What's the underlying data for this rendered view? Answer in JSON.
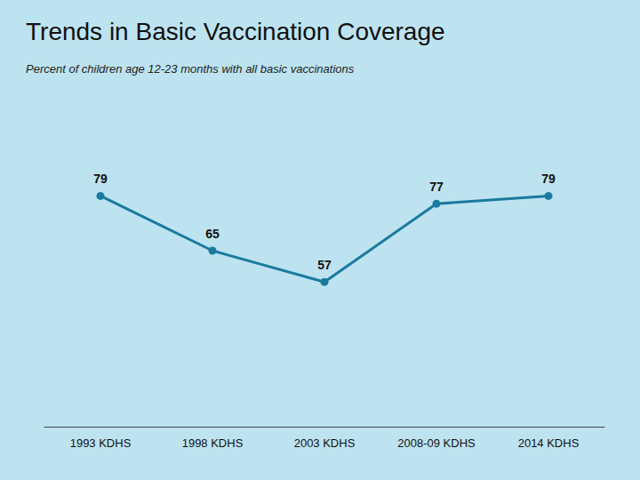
{
  "chart_data": {
    "type": "line",
    "title": "Trends in Basic Vaccination Coverage",
    "subtitle": "Percent of children age 12-23 months with all basic vaccinations",
    "categories": [
      "1993 KDHS",
      "1998 KDHS",
      "2003 KDHS",
      "2008-09 KDHS",
      "2014 KDHS"
    ],
    "values": [
      79,
      65,
      57,
      77,
      79
    ],
    "color": "#1b7a9e",
    "marker": "circle",
    "ylim": [
      20,
      95
    ],
    "grid": false,
    "data_labels": true,
    "tick_labels": "x"
  }
}
